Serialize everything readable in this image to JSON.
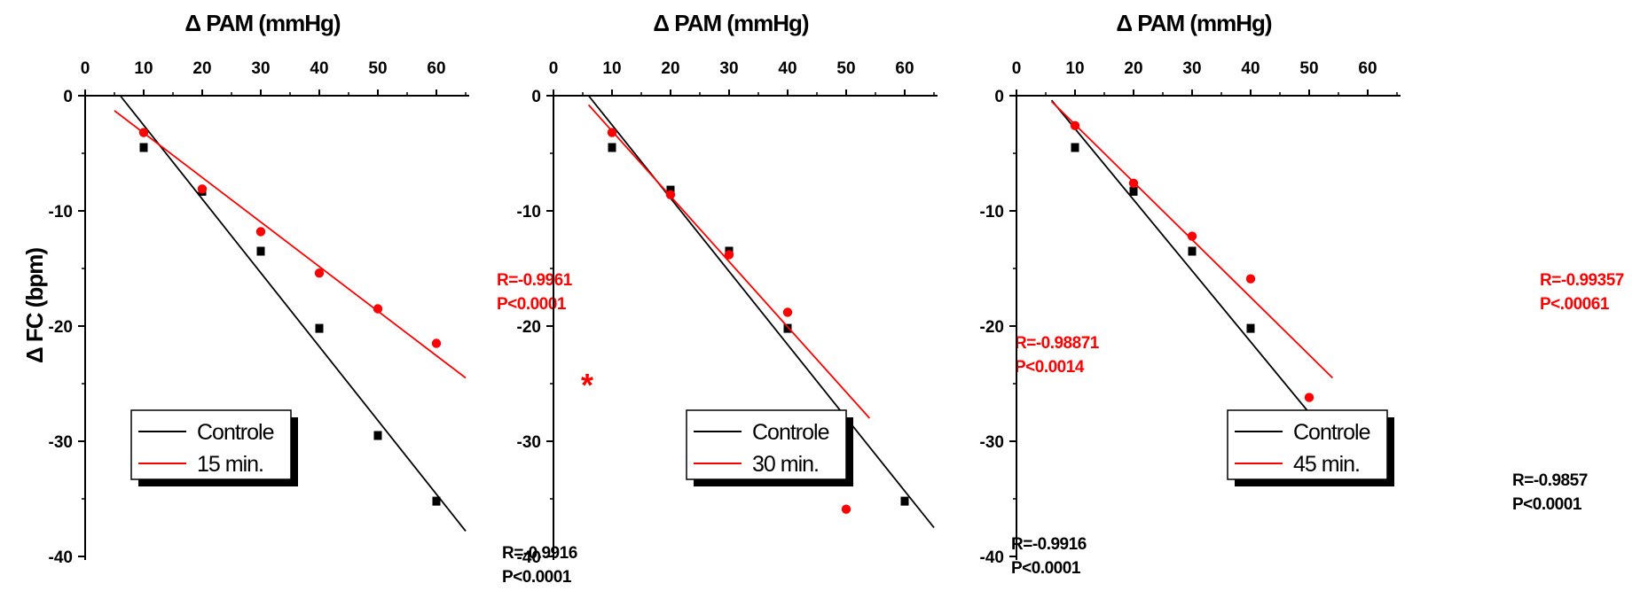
{
  "y_axis_title": "Δ FC (bpm)",
  "colors": {
    "control": "#000000",
    "treated": "#ff0000"
  },
  "marker_names": {
    "control": "square",
    "treated": "circle"
  },
  "chart_data": [
    {
      "type": "scatter",
      "xlabel": "Δ PAM (mmHg)",
      "ylabel": "Δ FC (bpm)",
      "xlim": [
        0,
        65
      ],
      "ylim": [
        -40,
        0
      ],
      "xticks": [
        "0",
        "10",
        "20",
        "30",
        "40",
        "50",
        "60"
      ],
      "yticks": [
        "0",
        "-10",
        "-20",
        "-30",
        "-40"
      ],
      "series": [
        {
          "name": "Controle",
          "x": [
            10,
            20,
            30,
            40,
            50,
            60
          ],
          "y": [
            -4.5,
            -8.3,
            -13.5,
            -20.2,
            -29.5,
            -35.2
          ],
          "fit": [
            [
              6,
              0
            ],
            [
              65,
              -37.8
            ]
          ]
        },
        {
          "name": "15 min.",
          "x": [
            10,
            20,
            30,
            40,
            50,
            60
          ],
          "y": [
            -3.2,
            -8.1,
            -11.8,
            -15.4,
            -18.5,
            -21.5
          ],
          "fit": [
            [
              5,
              -1.3
            ],
            [
              65,
              -24.5
            ]
          ]
        }
      ],
      "stats": [
        {
          "r": "R=-0.9916",
          "p": "P<0.0001"
        },
        {
          "r": "R=-0.9961",
          "p": "P<0.0001"
        }
      ],
      "significance": "*"
    },
    {
      "type": "scatter",
      "xlabel": "Δ PAM (mmHg)",
      "ylabel": "Δ FC (bpm)",
      "xlim": [
        0,
        65
      ],
      "ylim": [
        -40,
        0
      ],
      "xticks": [
        "0",
        "10",
        "20",
        "30",
        "40",
        "50",
        "60"
      ],
      "yticks": [
        "0",
        "-10",
        "-20",
        "-30",
        "-40"
      ],
      "series": [
        {
          "name": "Controle",
          "x": [
            10,
            20,
            30,
            40,
            50,
            60
          ],
          "y": [
            -4.5,
            -8.2,
            -13.5,
            -20.2,
            -29.5,
            -35.2
          ],
          "fit": [
            [
              6,
              0
            ],
            [
              65,
              -37.5
            ]
          ]
        },
        {
          "name": "30 min.",
          "x": [
            10,
            20,
            30,
            40,
            50
          ],
          "y": [
            -3.2,
            -8.6,
            -13.8,
            -18.8,
            -35.9
          ],
          "fit": [
            [
              6,
              -0.8
            ],
            [
              54,
              -28
            ]
          ]
        }
      ],
      "stats": [
        {
          "r": "R=-0.9916",
          "p": "P<0.0001"
        },
        {
          "r": "R=-0.98871",
          "p": "P<0.0014"
        }
      ]
    },
    {
      "type": "scatter",
      "xlabel": "Δ PAM (mmHg)",
      "ylabel": "Δ FC (bpm)",
      "xlim": [
        0,
        65
      ],
      "ylim": [
        -40,
        0
      ],
      "xticks": [
        "0",
        "10",
        "20",
        "30",
        "40",
        "50",
        "60"
      ],
      "yticks": [
        "0",
        "-10",
        "-20",
        "-30",
        "-40"
      ],
      "series": [
        {
          "name": "Controle",
          "x": [
            10,
            20,
            30,
            40,
            50
          ],
          "y": [
            -4.5,
            -8.3,
            -13.5,
            -20.2,
            -29.5
          ],
          "fit": [
            [
              6,
              -0.4
            ],
            [
              54,
              -30
            ]
          ]
        },
        {
          "name": "45 min.",
          "x": [
            10,
            20,
            30,
            40,
            50
          ],
          "y": [
            -2.6,
            -7.6,
            -12.2,
            -15.9,
            -26.2
          ],
          "fit": [
            [
              6,
              -0.5
            ],
            [
              54,
              -24.5
            ]
          ]
        }
      ],
      "stats": [
        {
          "r": "R=-0.9857",
          "p": "P<0.0001"
        },
        {
          "r": "R=-0.99357",
          "p": "P<.00061"
        }
      ]
    }
  ]
}
